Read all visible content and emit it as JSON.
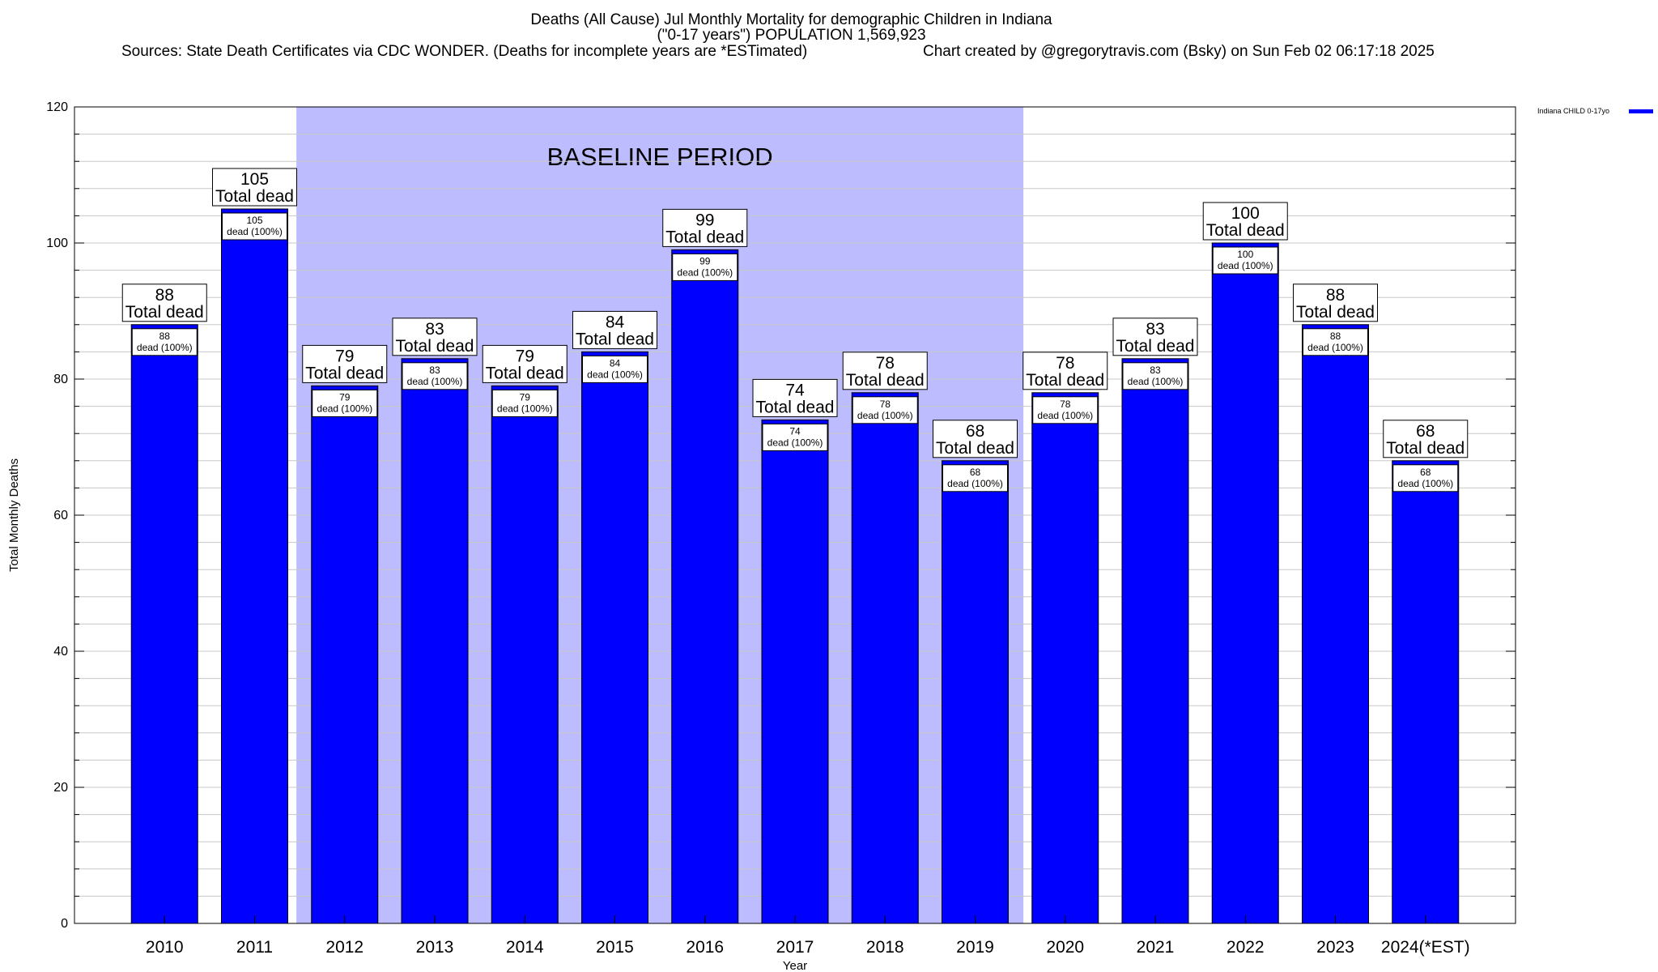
{
  "header": {
    "line1": "Deaths (All Cause) Jul Monthly Mortality for demographic Children in Indiana",
    "line2": "(\"0-17 years\") POPULATION 1,569,923",
    "sources": "Sources: State Death Certificates via CDC WONDER. (Deaths for incomplete years are *ESTimated)",
    "credit": "Chart created by @gregorytravis.com (Bsky) on Sun Feb 02 06:17:18 2025"
  },
  "chart_data": {
    "type": "bar",
    "xlabel": "Year",
    "ylabel": "Total Monthly Deaths",
    "ylim": [
      0,
      120
    ],
    "yticks": [
      0,
      20,
      40,
      60,
      80,
      100,
      120
    ],
    "grid": true,
    "categories": [
      "2010",
      "2011",
      "2012",
      "2013",
      "2014",
      "2015",
      "2016",
      "2017",
      "2018",
      "2019",
      "2020",
      "2021",
      "2022",
      "2023",
      "2024(*EST)"
    ],
    "series": [
      {
        "name": "Indiana CHILD 0-17yo",
        "color": "#0000ff",
        "values": [
          88,
          105,
          79,
          83,
          79,
          84,
          99,
          74,
          78,
          68,
          78,
          83,
          100,
          88,
          68
        ]
      }
    ],
    "total_label": "Total dead",
    "inner_label": "dead (100%)",
    "baseline": {
      "label": "BASELINE PERIOD",
      "start": "2012",
      "end": "2019",
      "color": "#bcbcff"
    },
    "legend": {
      "placement": "top-right",
      "entries": [
        "Indiana CHILD 0-17yo"
      ]
    }
  }
}
